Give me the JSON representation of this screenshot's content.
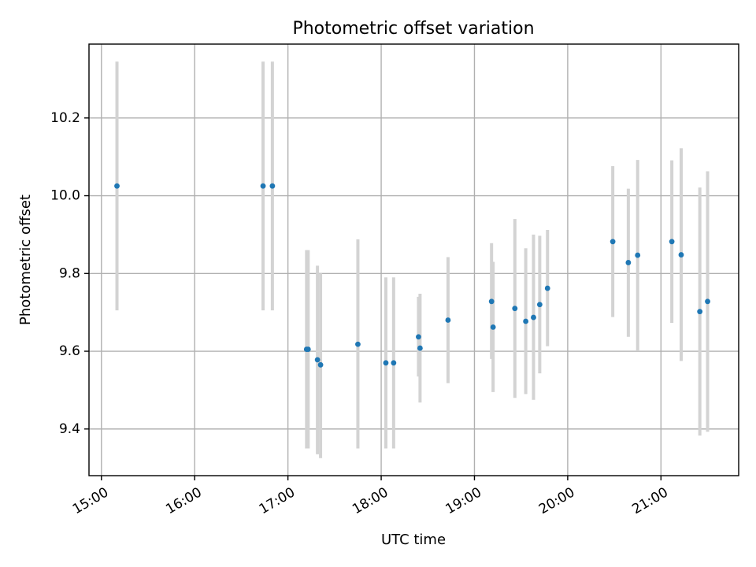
{
  "chart_data": {
    "type": "scatter",
    "title": "Photometric offset variation",
    "xlabel": "UTC time",
    "ylabel": "Photometric offset",
    "x_axis": {
      "kind": "time",
      "min": "14:52",
      "max": "21:50",
      "ticks": [
        "15:00",
        "16:00",
        "17:00",
        "18:00",
        "19:00",
        "20:00",
        "21:00"
      ]
    },
    "y_axis": {
      "min": 9.28,
      "max": 10.39,
      "ticks": [
        "9.4",
        "9.6",
        "9.8",
        "10.0",
        "10.2"
      ]
    },
    "grid": true,
    "colors": {
      "points": "#1f77b4",
      "error_bars": "#d3d3d3"
    },
    "series": [
      {
        "points": [
          {
            "x": "15:10",
            "y": 10.025,
            "ylo": 9.705,
            "yhi": 10.345
          },
          {
            "x": "16:44",
            "y": 10.025,
            "ylo": 9.705,
            "yhi": 10.345
          },
          {
            "x": "16:50",
            "y": 10.025,
            "ylo": 9.705,
            "yhi": 10.345
          },
          {
            "x": "17:12",
            "y": 9.605,
            "ylo": 9.35,
            "yhi": 9.86
          },
          {
            "x": "17:13",
            "y": 9.605,
            "ylo": 9.35,
            "yhi": 9.86
          },
          {
            "x": "17:19",
            "y": 9.578,
            "ylo": 9.335,
            "yhi": 9.82
          },
          {
            "x": "17:21",
            "y": 9.565,
            "ylo": 9.325,
            "yhi": 9.8
          },
          {
            "x": "17:45",
            "y": 9.618,
            "ylo": 9.35,
            "yhi": 9.888
          },
          {
            "x": "18:03",
            "y": 9.57,
            "ylo": 9.35,
            "yhi": 9.79
          },
          {
            "x": "18:08",
            "y": 9.57,
            "ylo": 9.35,
            "yhi": 9.79
          },
          {
            "x": "18:24",
            "y": 9.637,
            "ylo": 9.535,
            "yhi": 9.74
          },
          {
            "x": "18:25",
            "y": 9.608,
            "ylo": 9.468,
            "yhi": 9.748
          },
          {
            "x": "18:43",
            "y": 9.68,
            "ylo": 9.518,
            "yhi": 9.842
          },
          {
            "x": "19:11",
            "y": 9.728,
            "ylo": 9.58,
            "yhi": 9.878
          },
          {
            "x": "19:12",
            "y": 9.662,
            "ylo": 9.495,
            "yhi": 9.83
          },
          {
            "x": "19:26",
            "y": 9.71,
            "ylo": 9.48,
            "yhi": 9.94
          },
          {
            "x": "19:33",
            "y": 9.677,
            "ylo": 9.49,
            "yhi": 9.865
          },
          {
            "x": "19:38",
            "y": 9.687,
            "ylo": 9.475,
            "yhi": 9.9
          },
          {
            "x": "19:42",
            "y": 9.72,
            "ylo": 9.543,
            "yhi": 9.897
          },
          {
            "x": "19:47",
            "y": 9.762,
            "ylo": 9.613,
            "yhi": 9.912
          },
          {
            "x": "20:29",
            "y": 9.882,
            "ylo": 9.688,
            "yhi": 10.076
          },
          {
            "x": "20:39",
            "y": 9.828,
            "ylo": 9.637,
            "yhi": 10.018
          },
          {
            "x": "20:45",
            "y": 9.847,
            "ylo": 9.602,
            "yhi": 10.092
          },
          {
            "x": "21:07",
            "y": 9.882,
            "ylo": 9.673,
            "yhi": 10.091
          },
          {
            "x": "21:13",
            "y": 9.848,
            "ylo": 9.575,
            "yhi": 10.122
          },
          {
            "x": "21:25",
            "y": 9.702,
            "ylo": 9.383,
            "yhi": 10.021
          },
          {
            "x": "21:30",
            "y": 9.728,
            "ylo": 9.393,
            "yhi": 10.063
          }
        ]
      }
    ]
  }
}
